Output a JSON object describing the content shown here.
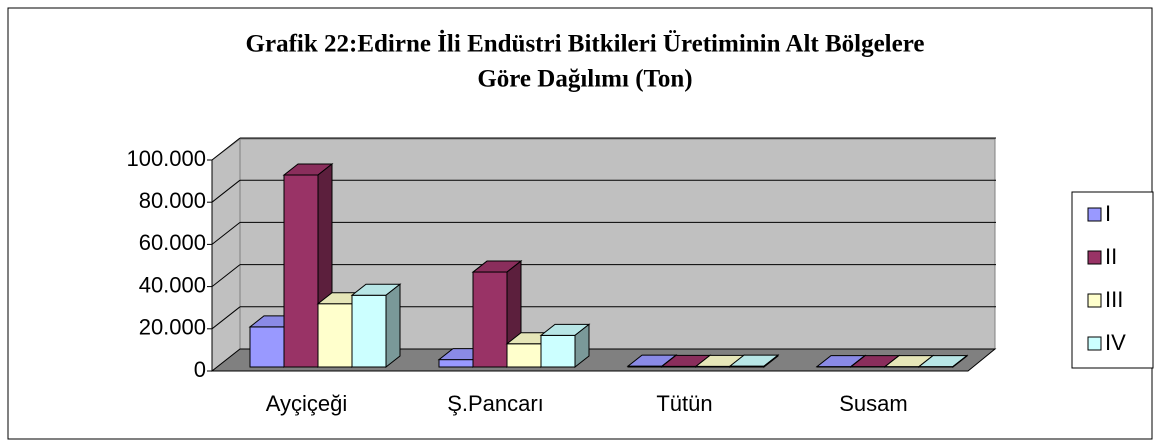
{
  "chart_data": {
    "type": "bar3d",
    "title": [
      "Grafik 22:Edirne İli Endüstri Bitkileri Üretiminin Alt Bölgelere",
      "Göre Dağılımı (Ton)"
    ],
    "categories": [
      "Ayçiçeği",
      "Ş.Pancarı",
      "Tütün",
      "Susam"
    ],
    "series": [
      {
        "name": "I",
        "color": "#9999ff",
        "values": [
          19000,
          3500,
          400,
          200
        ]
      },
      {
        "name": "II",
        "color": "#993366",
        "values": [
          91000,
          45000,
          300,
          150
        ]
      },
      {
        "name": "III",
        "color": "#ffffcc",
        "values": [
          30000,
          11000,
          300,
          150
        ]
      },
      {
        "name": "IV",
        "color": "#ccffff",
        "values": [
          34000,
          15000,
          400,
          200
        ]
      }
    ],
    "ylim": [
      0,
      100000
    ],
    "yticks": [
      0,
      {
        "value": 20000,
        "label": "20.000"
      },
      {
        "value": 40000,
        "label": "40.000"
      },
      {
        "value": 60000,
        "label": "60.000"
      },
      {
        "value": 80000,
        "label": "80.000"
      },
      {
        "value": 100000,
        "label": "100.000"
      }
    ],
    "grid": true,
    "legend": "right"
  }
}
